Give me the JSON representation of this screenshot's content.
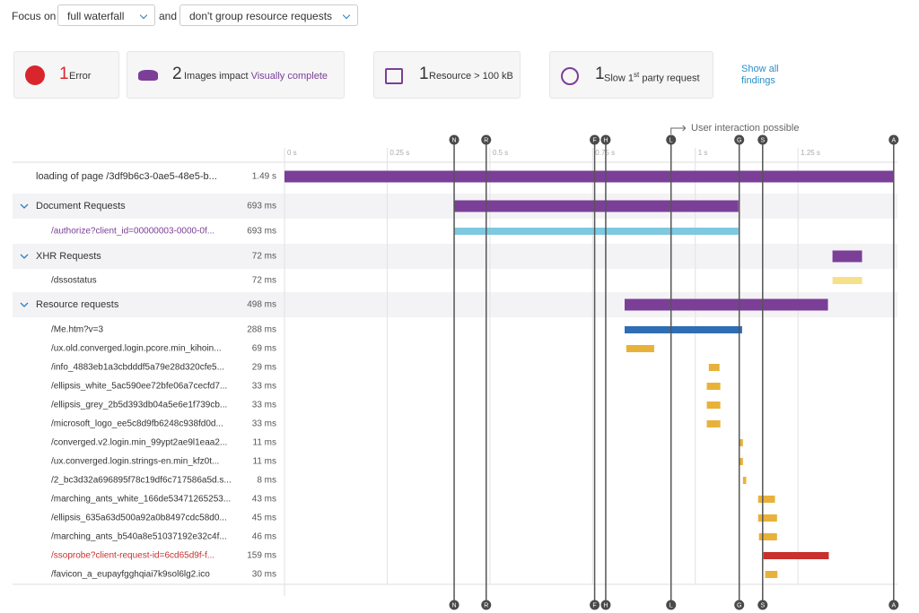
{
  "toolbar": {
    "label": "Focus on",
    "focus": "full waterfall",
    "joiner": "and",
    "group": "don't group resource requests"
  },
  "findings": [
    {
      "count": 1,
      "text": "Error",
      "color": "#d9262c"
    },
    {
      "count": 2,
      "text": "Images impact",
      "link": "Visually complete",
      "color": "#7b3f98"
    },
    {
      "count": 1,
      "text": "Resource > 100 kB",
      "color": "#7b3f98"
    },
    {
      "count": 1,
      "text": "Slow 1",
      "sup": "st",
      "text2": "party request",
      "color": "#7b3f98"
    }
  ],
  "show_all": "Show all findings",
  "interaction_label": "User interaction possible",
  "axis": {
    "xlim": [
      0,
      1.49
    ],
    "xticks": [
      {
        "value": 0,
        "label": "0 s"
      },
      {
        "value": 0.25,
        "label": "0.25 s"
      },
      {
        "value": 0.5,
        "label": "0.5 s"
      },
      {
        "value": 0.75,
        "label": "0.75 s"
      },
      {
        "value": 1,
        "label": "1 s"
      },
      {
        "value": 1.25,
        "label": "1.25 s"
      }
    ]
  },
  "markers": [
    {
      "label": "N",
      "value": 0.413
    },
    {
      "label": "R",
      "value": 0.491
    },
    {
      "label": "F",
      "value": 0.755
    },
    {
      "label": "H",
      "value": 0.782
    },
    {
      "label": "L",
      "value": 0.941
    },
    {
      "label": "G",
      "value": 1.107
    },
    {
      "label": "S",
      "value": 1.164
    },
    {
      "label": "A",
      "value": 1.483
    }
  ],
  "rows": [
    {
      "name": "loading of page /3df9b6c3-0ae5-48e5-b...",
      "duration": "1.49 s",
      "level": 0,
      "group": false,
      "bar": [
        0,
        1.483
      ],
      "color": "#7b3f98"
    },
    {
      "name": "Document Requests",
      "duration": "693 ms",
      "level": 0,
      "group": true,
      "bar": [
        0.413,
        1.105
      ],
      "color": "#7b3f98"
    },
    {
      "name": "/authorize?client_id=00000003-0000-0f...",
      "duration": "693 ms",
      "level": 1,
      "group": false,
      "bar": [
        0.413,
        1.105
      ],
      "color": "#7ec8e0",
      "text_color": "#7b3f98"
    },
    {
      "name": "XHR Requests",
      "duration": "72 ms",
      "level": 0,
      "group": true,
      "bar": [
        1.334,
        1.406
      ],
      "color": "#7b3f98"
    },
    {
      "name": "/dssostatus",
      "duration": "72 ms",
      "level": 1,
      "group": false,
      "bar": [
        1.334,
        1.406
      ],
      "color": "#f7e08a"
    },
    {
      "name": "Resource requests",
      "duration": "498 ms",
      "level": 0,
      "group": true,
      "bar": [
        0.828,
        1.323
      ],
      "color": "#7b3f98"
    },
    {
      "name": "/Me.htm?v=3",
      "duration": "288 ms",
      "level": 1,
      "group": false,
      "bar": [
        0.828,
        1.114
      ],
      "color": "#2f6db5"
    },
    {
      "name": "/ux.old.converged.login.pcore.min_kihoin...",
      "duration": "69 ms",
      "level": 1,
      "group": false,
      "bar": [
        0.832,
        0.9
      ],
      "color": "#e8b23a"
    },
    {
      "name": "/info_4883eb1a3cbdddf5a79e28d320cfe5...",
      "duration": "29 ms",
      "level": 1,
      "group": false,
      "bar": [
        1.033,
        1.059
      ],
      "color": "#e8b23a"
    },
    {
      "name": "/ellipsis_white_5ac590ee72bfe06a7cecfd7...",
      "duration": "33 ms",
      "level": 1,
      "group": false,
      "bar": [
        1.028,
        1.061
      ],
      "color": "#e8b23a"
    },
    {
      "name": "/ellipsis_grey_2b5d393db04a5e6e1f739cb...",
      "duration": "33 ms",
      "level": 1,
      "group": false,
      "bar": [
        1.028,
        1.061
      ],
      "color": "#e8b23a"
    },
    {
      "name": "/microsoft_logo_ee5c8d9fb6248c938fd0d...",
      "duration": "33 ms",
      "level": 1,
      "group": false,
      "bar": [
        1.028,
        1.061
      ],
      "color": "#e8b23a"
    },
    {
      "name": "/converged.v2.login.min_99ypt2ae9l1eaa2...",
      "duration": "11 ms",
      "level": 1,
      "group": false,
      "bar": [
        1.107,
        1.116
      ],
      "color": "#e8b23a"
    },
    {
      "name": "/ux.converged.login.strings-en.min_kfz0t...",
      "duration": "11 ms",
      "level": 1,
      "group": false,
      "bar": [
        1.107,
        1.116
      ],
      "color": "#e8b23a"
    },
    {
      "name": "/2_bc3d32a696895f78c19df6c717586a5d.s...",
      "duration": "8 ms",
      "level": 1,
      "group": false,
      "bar": [
        1.116,
        1.124
      ],
      "color": "#e8b23a"
    },
    {
      "name": "/marching_ants_white_166de53471265253...",
      "duration": "43 ms",
      "level": 1,
      "group": false,
      "bar": [
        1.153,
        1.194
      ],
      "color": "#e8b23a"
    },
    {
      "name": "/ellipsis_635a63d500a92a0b8497cdc58d0...",
      "duration": "45 ms",
      "level": 1,
      "group": false,
      "bar": [
        1.153,
        1.199
      ],
      "color": "#e8b23a"
    },
    {
      "name": "/marching_ants_b540a8e51037192e32c4f...",
      "duration": "46 ms",
      "level": 1,
      "group": false,
      "bar": [
        1.155,
        1.199
      ],
      "color": "#e8b23a"
    },
    {
      "name": "/ssoprobe?client-request-id=6cd65d9f-f...",
      "duration": "159 ms",
      "level": 1,
      "group": false,
      "bar": [
        1.166,
        1.325
      ],
      "color": "#c8312e",
      "text_color": "#c8312e"
    },
    {
      "name": "/favicon_a_eupayfgghqiai7k9sol6lg2.ico",
      "duration": "30 ms",
      "level": 1,
      "group": false,
      "bar": [
        1.17,
        1.2
      ],
      "color": "#e8b23a"
    }
  ]
}
